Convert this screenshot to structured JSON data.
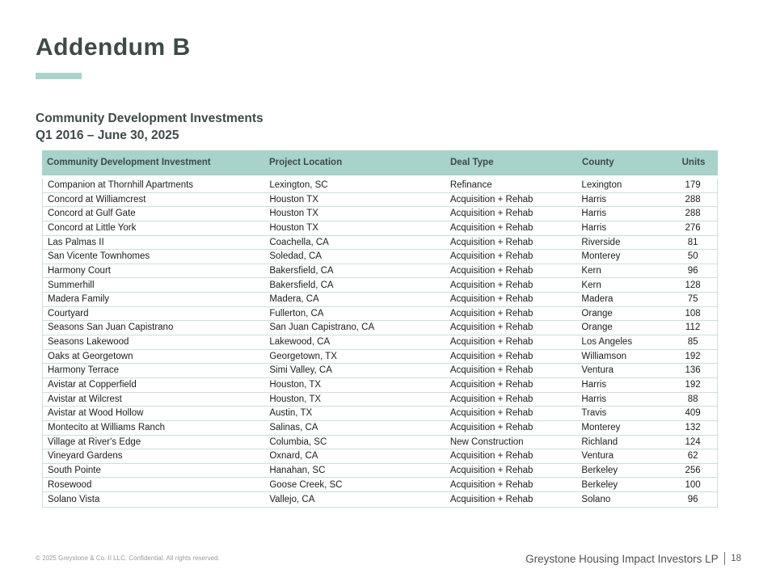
{
  "slide": {
    "title": "Addendum B",
    "subtitle_line1": "Community Development Investments",
    "subtitle_line2": "Q1 2016 – June 30, 2025"
  },
  "table": {
    "headers": [
      "Community Development Investment",
      "Project Location",
      "Deal Type",
      "County",
      "Units"
    ],
    "rows": [
      [
        "Companion at Thornhill Apartments",
        "Lexington, SC",
        "Refinance",
        "Lexington",
        "179"
      ],
      [
        "Concord at Williamcrest",
        "Houston TX",
        "Acquisition + Rehab",
        "Harris",
        "288"
      ],
      [
        "Concord at Gulf Gate",
        "Houston TX",
        "Acquisition + Rehab",
        "Harris",
        "288"
      ],
      [
        "Concord at Little York",
        "Houston TX",
        "Acquisition + Rehab",
        "Harris",
        "276"
      ],
      [
        "Las Palmas II",
        "Coachella, CA",
        "Acquisition + Rehab",
        "Riverside",
        "81"
      ],
      [
        "San Vicente Townhomes",
        "Soledad, CA",
        "Acquisition + Rehab",
        "Monterey",
        "50"
      ],
      [
        "Harmony Court",
        "Bakersfield, CA",
        "Acquisition + Rehab",
        "Kern",
        "96"
      ],
      [
        "Summerhill",
        "Bakersfield, CA",
        "Acquisition + Rehab",
        "Kern",
        "128"
      ],
      [
        "Madera Family",
        "Madera, CA",
        "Acquisition + Rehab",
        "Madera",
        "75"
      ],
      [
        "Courtyard",
        "Fullerton, CA",
        "Acquisition + Rehab",
        "Orange",
        "108"
      ],
      [
        "Seasons San Juan Capistrano",
        "San Juan Capistrano, CA",
        "Acquisition + Rehab",
        "Orange",
        "112"
      ],
      [
        "Seasons Lakewood",
        "Lakewood, CA",
        "Acquisition + Rehab",
        "Los Angeles",
        "85"
      ],
      [
        "Oaks at Georgetown",
        "Georgetown, TX",
        "Acquisition + Rehab",
        "Williamson",
        "192"
      ],
      [
        "Harmony Terrace",
        "Simi Valley, CA",
        "Acquisition + Rehab",
        "Ventura",
        "136"
      ],
      [
        "Avistar at Copperfield",
        "Houston, TX",
        "Acquisition + Rehab",
        "Harris",
        "192"
      ],
      [
        "Avistar at Wilcrest",
        "Houston, TX",
        "Acquisition + Rehab",
        "Harris",
        "88"
      ],
      [
        "Avistar at Wood Hollow",
        "Austin, TX",
        "Acquisition + Rehab",
        "Travis",
        "409"
      ],
      [
        "Montecito at Williams Ranch",
        "Salinas, CA",
        "Acquisition + Rehab",
        "Monterey",
        "132"
      ],
      [
        "Village at River's Edge",
        "Columbia, SC",
        "New Construction",
        "Richland",
        "124"
      ],
      [
        "Vineyard Gardens",
        "Oxnard, CA",
        "Acquisition + Rehab",
        "Ventura",
        "62"
      ],
      [
        "South Pointe",
        "Hanahan, SC",
        "Acquisition + Rehab",
        "Berkeley",
        "256"
      ],
      [
        "Rosewood",
        "Goose Creek, SC",
        "Acquisition + Rehab",
        "Berkeley",
        "100"
      ],
      [
        "Solano Vista",
        "Vallejo, CA",
        "Acquisition + Rehab",
        "Solano",
        "96"
      ]
    ]
  },
  "footer": {
    "copyright": "© 2025 Greystone & Co. II LLC. Confidential. All rights reserved.",
    "company": "Greystone Housing Impact Investors LP",
    "page_number": "18"
  },
  "colors": {
    "accent_teal": "#a9d4cb",
    "header_bg": "#a7d3ca",
    "title_color": "#3e4a49",
    "row_border": "#ccdfdb"
  }
}
